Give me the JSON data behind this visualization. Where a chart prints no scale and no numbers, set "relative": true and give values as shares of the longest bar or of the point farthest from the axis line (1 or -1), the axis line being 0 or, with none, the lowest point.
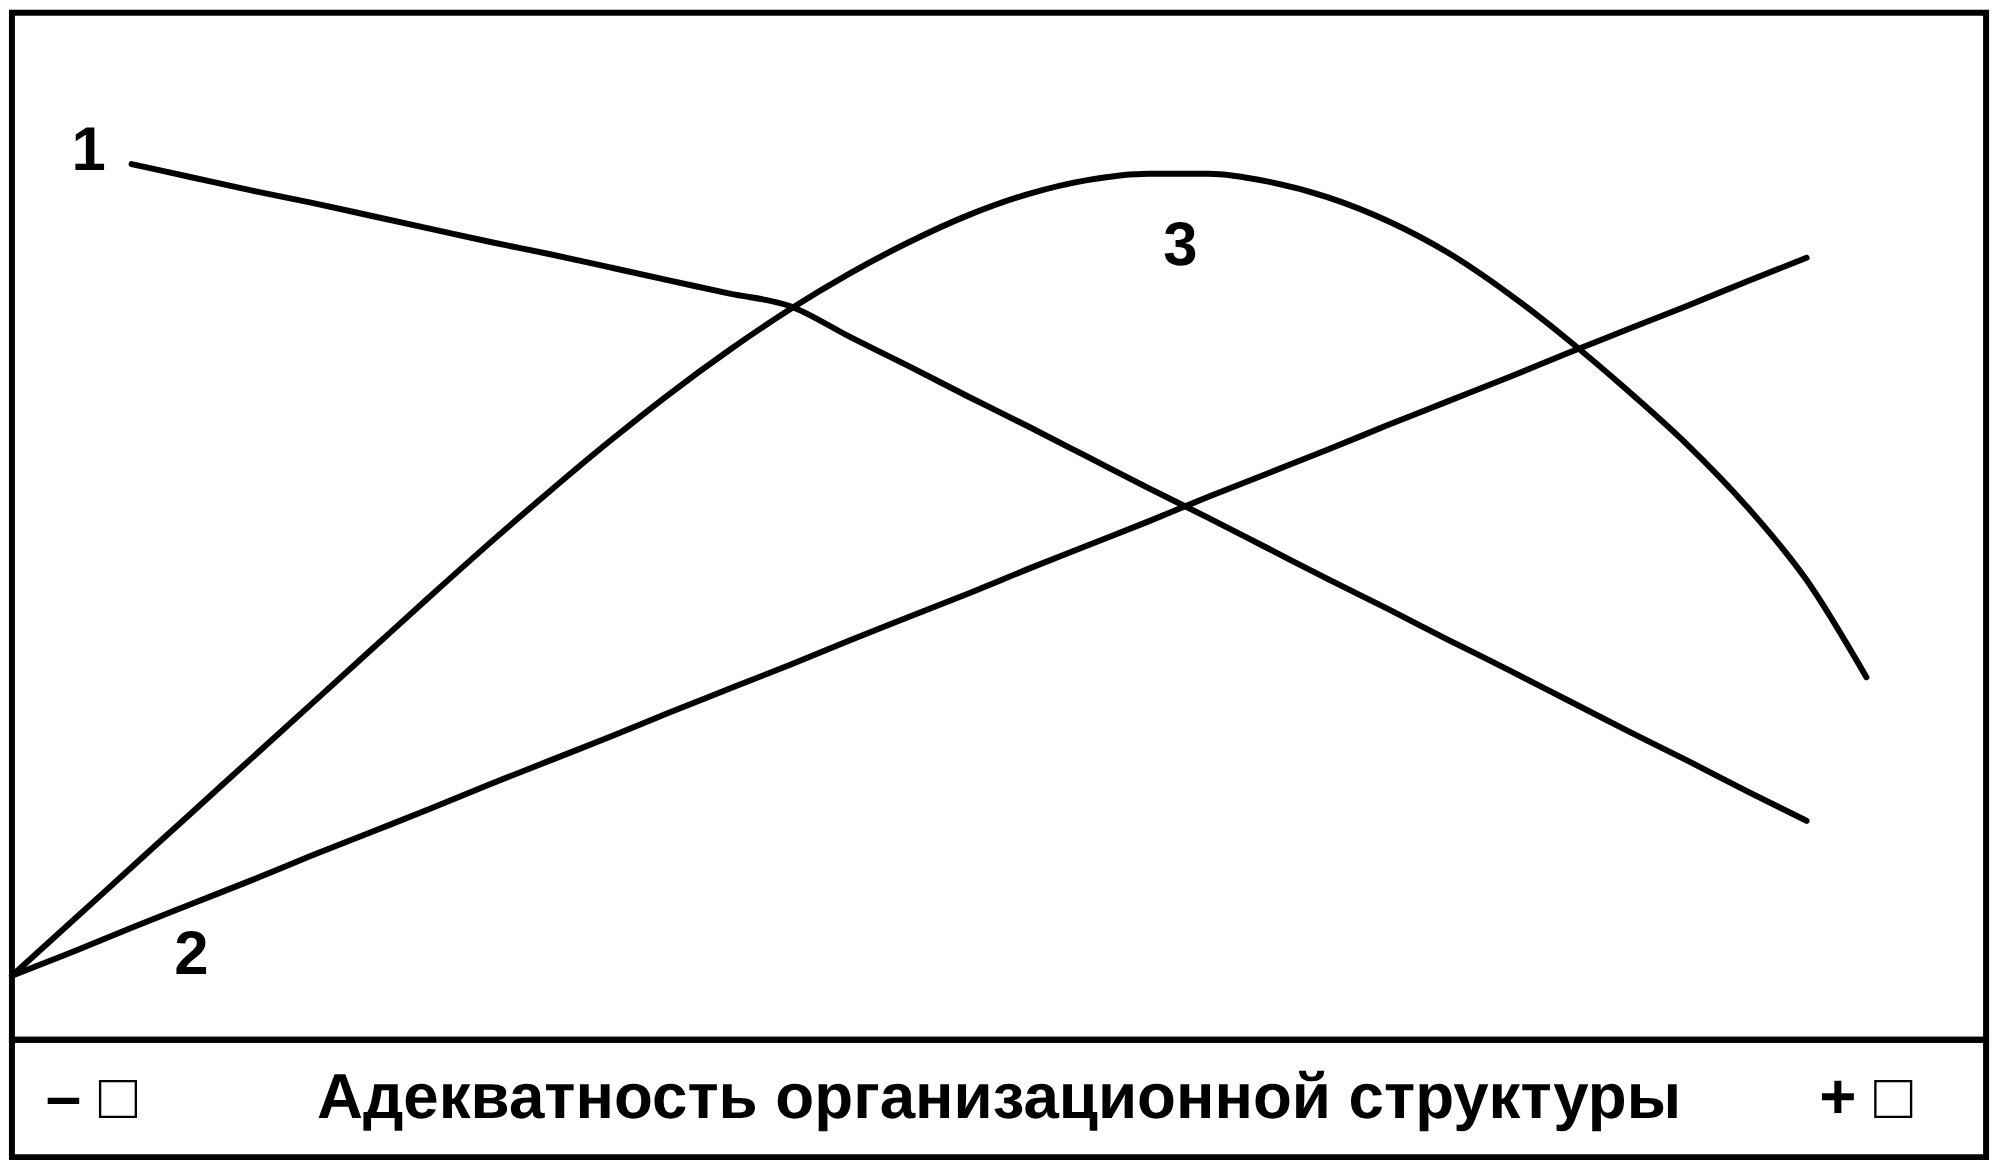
{
  "chart_data": {
    "type": "line",
    "relative": true,
    "xlabel": "Адекватность организационной структуры",
    "annotations": [
      "– □",
      "+ □"
    ],
    "categories": [
      null,
      null,
      null,
      null,
      null,
      null,
      null,
      null,
      null,
      null,
      null,
      null,
      null,
      null,
      null,
      null,
      null,
      null,
      null,
      null,
      null,
      null,
      null,
      null,
      null,
      null,
      null,
      null,
      null,
      null,
      null,
      null,
      null,
      null
    ],
    "series": [
      {
        "name": "1",
        "color": "#000000",
        "values": [
          null,
          null,
          1.0,
          0.985,
          0.97,
          0.956,
          0.941,
          0.926,
          0.911,
          0.897,
          0.882,
          0.867,
          0.852,
          0.838,
          0.803,
          0.769,
          0.734,
          0.7,
          0.665,
          0.63,
          0.596,
          0.561,
          0.526,
          0.492,
          0.457,
          0.423,
          0.388,
          0.353,
          0.319,
          0.284,
          0.25,
          null,
          null,
          null
        ]
      },
      {
        "name": "2",
        "color": "#000000",
        "values": [
          0.073,
          0.1,
          0.128,
          0.155,
          0.182,
          0.21,
          0.237,
          0.264,
          0.292,
          0.319,
          0.346,
          0.374,
          0.401,
          0.428,
          0.456,
          0.483,
          0.51,
          0.538,
          0.565,
          0.592,
          0.62,
          0.647,
          0.674,
          0.702,
          0.729,
          0.756,
          0.784,
          0.811,
          0.838,
          0.866,
          0.893,
          null,
          null,
          null
        ]
      },
      {
        "name": "3",
        "color": "#000000",
        "values": [
          0.073,
          0.135,
          0.197,
          0.259,
          0.321,
          0.383,
          0.445,
          0.507,
          0.568,
          0.627,
          0.684,
          0.738,
          0.788,
          0.834,
          0.875,
          0.911,
          0.942,
          0.966,
          0.982,
          0.989,
          0.989,
          0.98,
          0.962,
          0.935,
          0.899,
          0.853,
          0.8,
          0.742,
          0.68,
          0.609,
          0.525,
          0.414,
          null,
          null
        ]
      }
    ]
  }
}
